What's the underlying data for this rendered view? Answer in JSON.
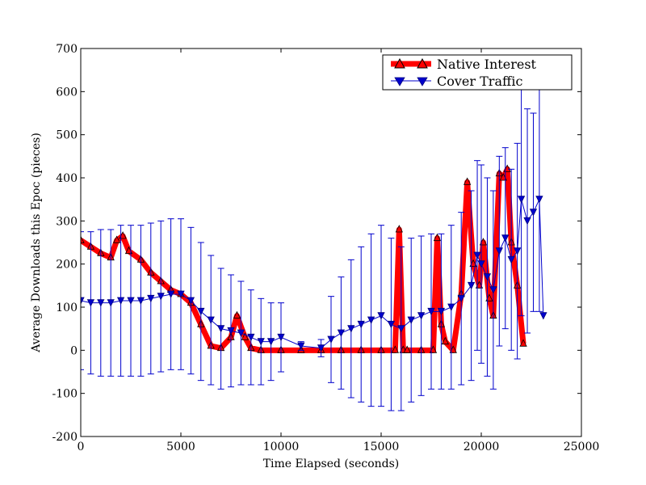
{
  "chart_data": {
    "type": "line",
    "title": "",
    "xlabel": "Time Elapsed (seconds)",
    "ylabel": "Average Downloads this Epoc (pieces)",
    "xlim": [
      0,
      25000
    ],
    "ylim": [
      -200,
      700
    ],
    "xticks": [
      0,
      5000,
      10000,
      15000,
      20000,
      25000
    ],
    "xtick_labels": [
      "0",
      "5000",
      "10000",
      "15000",
      "20000",
      "25000"
    ],
    "yticks": [
      -200,
      -100,
      0,
      100,
      200,
      300,
      400,
      500,
      600,
      700
    ],
    "ytick_labels": [
      "-200",
      "-100",
      "0",
      "100",
      "200",
      "300",
      "400",
      "500",
      "600",
      "700"
    ],
    "grid": false,
    "legend_position": "top-right",
    "series": [
      {
        "name": "Native Interest",
        "color": "#ff0000",
        "marker": "triangle-up",
        "errorbars": false,
        "x": [
          0,
          500,
          1000,
          1500,
          1800,
          2100,
          2400,
          3000,
          3500,
          4000,
          4500,
          5000,
          5500,
          6000,
          6500,
          7000,
          7500,
          7800,
          8200,
          8500,
          9000,
          10000,
          11000,
          12000,
          13000,
          14000,
          15000,
          15700,
          15900,
          16100,
          16300,
          17000,
          17600,
          17800,
          18000,
          18200,
          18600,
          19000,
          19300,
          19600,
          19900,
          20100,
          20400,
          20600,
          20900,
          21100,
          21300,
          21500,
          21800,
          22100
        ],
        "y": [
          255,
          240,
          225,
          215,
          255,
          265,
          230,
          210,
          180,
          160,
          140,
          130,
          110,
          60,
          10,
          5,
          30,
          80,
          30,
          5,
          0,
          0,
          0,
          0,
          0,
          0,
          0,
          0,
          280,
          0,
          0,
          0,
          0,
          260,
          60,
          20,
          0,
          130,
          390,
          200,
          150,
          250,
          120,
          80,
          410,
          400,
          420,
          250,
          150,
          15
        ]
      },
      {
        "name": "Cover Traffic",
        "color": "#0000cc",
        "marker": "triangle-down",
        "errorbars": true,
        "x": [
          0,
          500,
          1000,
          1500,
          2000,
          2500,
          3000,
          3500,
          4000,
          4500,
          5000,
          5500,
          6000,
          6500,
          7000,
          7500,
          8000,
          8500,
          9000,
          9500,
          10000,
          11000,
          12000,
          12500,
          13000,
          13500,
          14000,
          14500,
          15000,
          15500,
          16000,
          16500,
          17000,
          17500,
          18000,
          18500,
          19000,
          19500,
          19800,
          20000,
          20300,
          20600,
          20900,
          21200,
          21500,
          21800,
          22000,
          22300,
          22600,
          22900,
          23100
        ],
        "y": [
          115,
          110,
          110,
          110,
          115,
          115,
          115,
          120,
          125,
          130,
          130,
          115,
          90,
          70,
          50,
          45,
          40,
          30,
          20,
          20,
          30,
          10,
          5,
          25,
          40,
          50,
          60,
          70,
          80,
          60,
          50,
          70,
          80,
          90,
          90,
          100,
          120,
          150,
          220,
          200,
          170,
          140,
          230,
          260,
          210,
          230,
          350,
          300,
          320,
          350,
          80
        ],
        "err": [
          160,
          165,
          170,
          170,
          175,
          175,
          175,
          175,
          175,
          175,
          175,
          170,
          160,
          150,
          140,
          130,
          120,
          110,
          100,
          90,
          80,
          10,
          20,
          100,
          130,
          160,
          180,
          200,
          210,
          200,
          190,
          190,
          185,
          180,
          180,
          190,
          200,
          220,
          220,
          230,
          230,
          230,
          220,
          210,
          210,
          250,
          270,
          260,
          230,
          260,
          0
        ]
      }
    ]
  }
}
